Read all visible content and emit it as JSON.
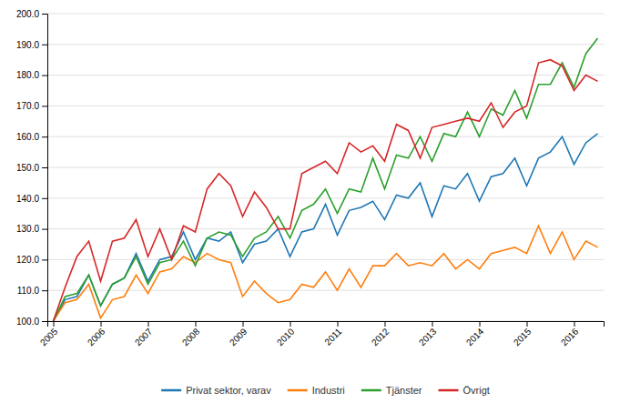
{
  "chart_data": {
    "type": "line",
    "categories": [
      "2005",
      null,
      null,
      null,
      "2006",
      null,
      null,
      null,
      "2007",
      null,
      null,
      null,
      "2008",
      null,
      null,
      null,
      "2009",
      null,
      null,
      null,
      "2010",
      null,
      null,
      null,
      "2011",
      null,
      null,
      null,
      "2012",
      null,
      null,
      null,
      "2013",
      null,
      null,
      null,
      "2014",
      null,
      null,
      null,
      "2015",
      null,
      null,
      null,
      "2016",
      null,
      null
    ],
    "series": [
      {
        "name": "Privat sektor, varav",
        "values": [
          100.0,
          107.0,
          108.0,
          115.0,
          105.0,
          112.0,
          114.0,
          122.0,
          113.0,
          120.0,
          121.0,
          129.0,
          120.0,
          127.0,
          126.0,
          129.0,
          119.0,
          125.0,
          126.0,
          130.0,
          121.0,
          129.0,
          130.0,
          138.0,
          128.0,
          136.0,
          137.0,
          139.0,
          133.0,
          141.0,
          140.0,
          145.0,
          134.0,
          144.0,
          143.0,
          148.0,
          139.0,
          147.0,
          148.0,
          153.0,
          144.0,
          153.0,
          155.0,
          160.0,
          151.0,
          158.0,
          161.0
        ]
      },
      {
        "name": "Industri",
        "values": [
          100.0,
          106.0,
          107.0,
          112.0,
          101.0,
          107.0,
          108.0,
          115.0,
          109.0,
          116.0,
          117.0,
          121.0,
          119.0,
          122.0,
          120.0,
          119.0,
          108.0,
          113.0,
          109.0,
          106.0,
          107.0,
          112.0,
          111.0,
          116.0,
          110.0,
          117.0,
          111.0,
          118.0,
          118.0,
          122.0,
          118.0,
          119.0,
          118.0,
          122.0,
          117.0,
          120.0,
          117.0,
          122.0,
          123.0,
          124.0,
          122.0,
          131.0,
          122.0,
          129.0,
          120.0,
          126.0,
          124.0
        ]
      },
      {
        "name": "Tjänster",
        "values": [
          100.0,
          108.0,
          109.0,
          115.0,
          105.0,
          112.0,
          114.0,
          121.0,
          112.0,
          119.0,
          120.0,
          126.0,
          118.0,
          127.0,
          129.0,
          128.0,
          121.0,
          127.0,
          129.0,
          134.0,
          127.0,
          136.0,
          138.0,
          143.0,
          135.0,
          143.0,
          142.0,
          153.0,
          143.0,
          154.0,
          153.0,
          160.0,
          152.0,
          161.0,
          160.0,
          168.0,
          160.0,
          169.0,
          167.0,
          175.0,
          166.0,
          177.0,
          177.0,
          184.0,
          176.0,
          187.0,
          192.0
        ]
      },
      {
        "name": "Övrigt",
        "values": [
          100.0,
          111.0,
          121.0,
          126.0,
          113.0,
          126.0,
          127.0,
          133.0,
          121.0,
          130.0,
          120.0,
          131.0,
          129.0,
          143.0,
          148.0,
          144.0,
          134.0,
          142.0,
          137.0,
          130.0,
          130.0,
          148.0,
          150.0,
          152.0,
          148.0,
          158.0,
          155.0,
          157.0,
          152.0,
          164.0,
          162.0,
          153.0,
          163.0,
          164.0,
          165.0,
          166.0,
          165.0,
          171.0,
          163.0,
          168.0,
          170.0,
          184.0,
          185.0,
          183.0,
          175.0,
          180.0,
          178.0
        ]
      }
    ],
    "ylim": [
      100.0,
      200.0
    ],
    "yticks": [
      {
        "value": 100.0,
        "label": "100.0"
      },
      {
        "value": 110.0,
        "label": "110.0"
      },
      {
        "value": 120.0,
        "label": "120.0"
      },
      {
        "value": 130.0,
        "label": "130.0"
      },
      {
        "value": 140.0,
        "label": "140.0"
      },
      {
        "value": 150.0,
        "label": "150.0"
      },
      {
        "value": 160.0,
        "label": "160.0"
      },
      {
        "value": 170.0,
        "label": "170.0"
      },
      {
        "value": 180.0,
        "label": "180.0"
      },
      {
        "value": 190.0,
        "label": "190.0"
      },
      {
        "value": 200.0,
        "label": "200.0"
      }
    ],
    "grid": true,
    "legend": "bottom"
  }
}
